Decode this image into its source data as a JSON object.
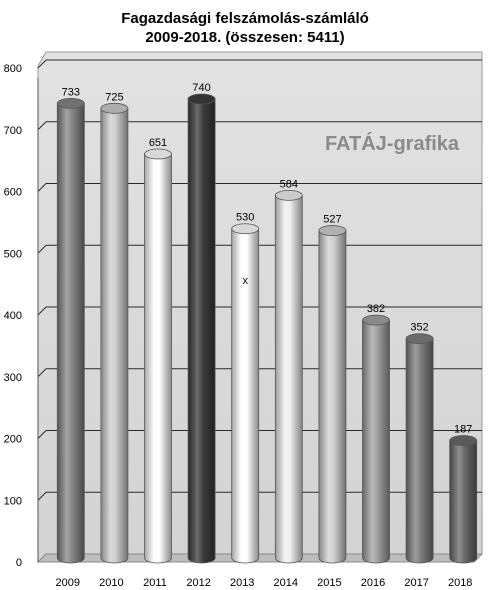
{
  "chart_data": {
    "type": "bar",
    "title": "Fagazdasági felszámolás-számláló",
    "subtitle": "2009-2018. (összesen: 5411)",
    "watermark": "FATÁJ-grafika",
    "categories": [
      "2009",
      "2010",
      "2011",
      "2012",
      "2013",
      "2014",
      "2015",
      "2016",
      "2017",
      "2018"
    ],
    "values": [
      733,
      725,
      651,
      740,
      530,
      584,
      527,
      382,
      352,
      187
    ],
    "annotation": "x",
    "ylim": [
      0,
      800
    ],
    "yticks": [
      0,
      100,
      200,
      300,
      400,
      500,
      600,
      700,
      800
    ],
    "grid": true,
    "xlabel": "",
    "ylabel": "",
    "bar_colors": [
      "#858585",
      "#cdcdcd",
      "#ffffff",
      "#3c3c3c",
      "#ffffff",
      "#efefef",
      "#d0d0d0",
      "#a2a2a2",
      "#7e7e7e",
      "#6a6a6a"
    ],
    "background": "#dcdcdc"
  }
}
